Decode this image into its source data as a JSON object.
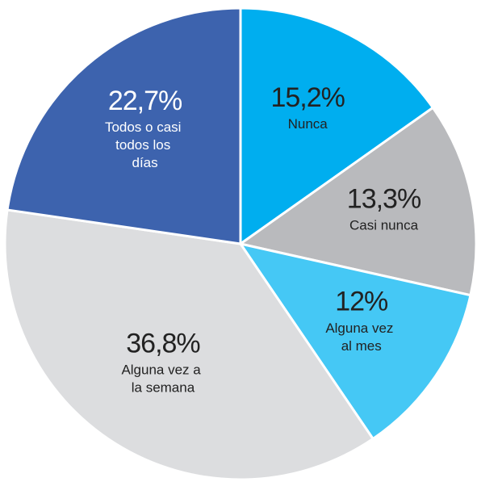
{
  "chart_data": {
    "type": "pie",
    "categories": [
      "Nunca",
      "Casi nunca",
      "Alguna vez al mes",
      "Alguna vez a la semana",
      "Todos o casi todos los días"
    ],
    "values": [
      15.2,
      13.3,
      12,
      36.8,
      22.7
    ],
    "value_labels": [
      "15,2%",
      "13,3%",
      "12%",
      "36,8%",
      "22,7%"
    ],
    "colors": [
      "#00aeef",
      "#b9babd",
      "#45c8f5",
      "#dcdddf",
      "#3d63ae"
    ]
  }
}
